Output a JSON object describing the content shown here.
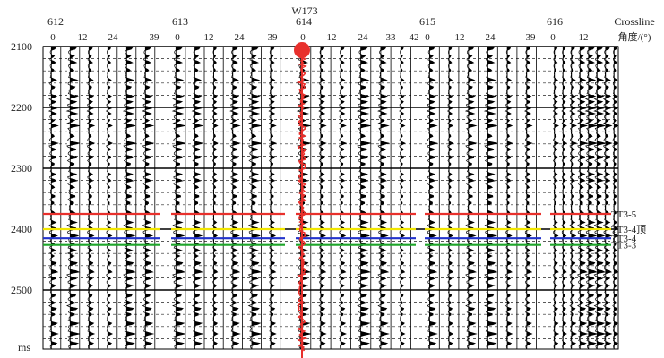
{
  "well_name": "W173",
  "crossline_label": "Crossline",
  "angle_label": "角度/(°)",
  "time_unit": "ms",
  "time_ticks": [
    "2100",
    "2200",
    "2300",
    "2400",
    "2500"
  ],
  "time_range_ms": [
    2100,
    2600
  ],
  "panels": [
    {
      "crossline": "612",
      "angles": [
        "0",
        "12",
        "24",
        "39"
      ]
    },
    {
      "crossline": "613",
      "angles": [
        "0",
        "12",
        "24",
        "39"
      ]
    },
    {
      "crossline": "614",
      "angles": [
        "0",
        "12",
        "24",
        "33",
        "42"
      ]
    },
    {
      "crossline": "615",
      "angles": [
        "0",
        "12",
        "24",
        "39"
      ]
    },
    {
      "crossline": "616",
      "angles": [
        "0",
        "12"
      ]
    }
  ],
  "horizons": [
    {
      "name": "TT3-5",
      "time_ms": 2375,
      "color": "#e8302c"
    },
    {
      "name": "TT3-4顶",
      "time_ms": 2400,
      "color": "#f2e600"
    },
    {
      "name": "TT3-4",
      "time_ms": 2415,
      "color": "#2233cc"
    },
    {
      "name": "TT3-3",
      "time_ms": 2426,
      "color": "#1ea52a"
    }
  ],
  "well_color": "#e8302c"
}
